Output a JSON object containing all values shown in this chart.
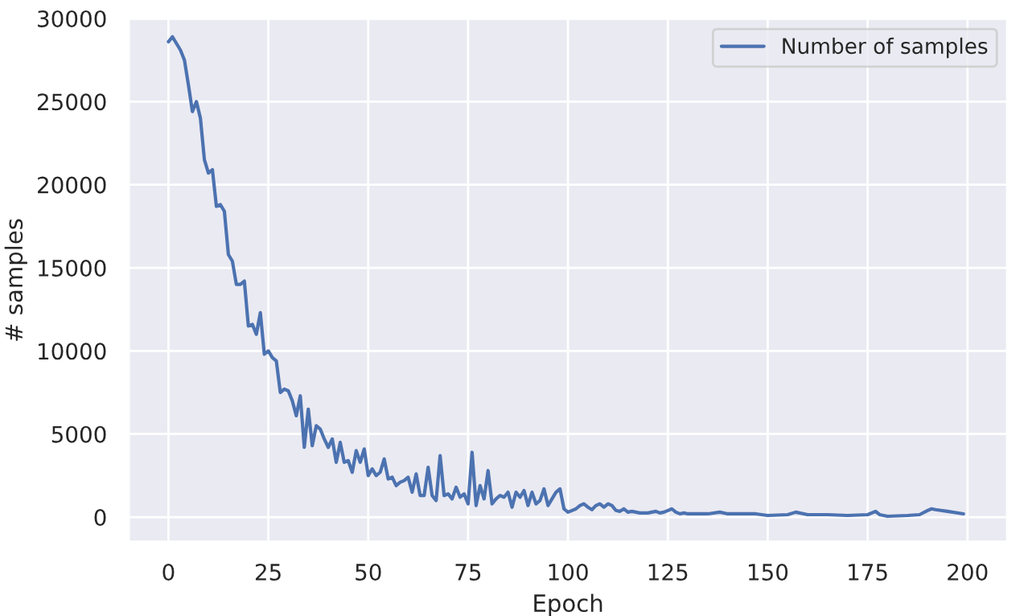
{
  "chart_data": {
    "type": "line",
    "xlabel": "Epoch",
    "ylabel": "# samples",
    "xlim": [
      -10,
      210
    ],
    "xticks": [
      0,
      25,
      50,
      75,
      100,
      125,
      150,
      175,
      200
    ],
    "ylim": [
      -1500,
      30000
    ],
    "yticks": [
      0,
      5000,
      10000,
      15000,
      20000,
      25000,
      30000
    ],
    "grid": true,
    "legend": "top right",
    "series": [
      {
        "name": "Number of samples",
        "color": "#4c72b0",
        "x": [
          0,
          1,
          2,
          3,
          4,
          5,
          6,
          7,
          8,
          9,
          10,
          11,
          12,
          13,
          14,
          15,
          16,
          17,
          18,
          19,
          20,
          21,
          22,
          23,
          24,
          25,
          26,
          27,
          28,
          29,
          30,
          31,
          32,
          33,
          34,
          35,
          36,
          37,
          38,
          39,
          40,
          41,
          42,
          43,
          44,
          45,
          46,
          47,
          48,
          49,
          50,
          51,
          52,
          53,
          54,
          55,
          56,
          57,
          58,
          59,
          60,
          61,
          62,
          63,
          64,
          65,
          66,
          67,
          68,
          69,
          70,
          71,
          72,
          73,
          74,
          75,
          76,
          77,
          78,
          79,
          80,
          81,
          82,
          83,
          84,
          85,
          86,
          87,
          88,
          89,
          90,
          91,
          92,
          93,
          94,
          95,
          96,
          97,
          98,
          99,
          100,
          101,
          102,
          103,
          104,
          105,
          106,
          107,
          108,
          109,
          110,
          111,
          112,
          113,
          114,
          115,
          116,
          117,
          118,
          119,
          120,
          121,
          122,
          123,
          124,
          125,
          126,
          127,
          128,
          129,
          130,
          135,
          138,
          140,
          145,
          147,
          150,
          155,
          157,
          160,
          165,
          170,
          175,
          177,
          178,
          180,
          185,
          188,
          190,
          191,
          192,
          195,
          199
        ],
        "values": [
          28600,
          28900,
          28500,
          28100,
          27500,
          26000,
          24400,
          25000,
          24000,
          21500,
          20700,
          20900,
          18700,
          18800,
          18400,
          15800,
          15400,
          14000,
          14000,
          14200,
          11500,
          11600,
          11000,
          12300,
          9800,
          10000,
          9600,
          9400,
          7500,
          7700,
          7600,
          7000,
          6100,
          7300,
          4200,
          6500,
          4300,
          5500,
          5300,
          4700,
          4200,
          4700,
          3300,
          4500,
          3300,
          3400,
          2700,
          4000,
          3300,
          4100,
          2500,
          2900,
          2500,
          2700,
          3500,
          2300,
          2400,
          1900,
          2100,
          2200,
          2400,
          1500,
          2600,
          1300,
          1300,
          3000,
          1300,
          1000,
          3700,
          1300,
          1400,
          1100,
          1800,
          1200,
          1400,
          800,
          3900,
          700,
          1900,
          1100,
          2800,
          800,
          1100,
          1300,
          1200,
          1500,
          600,
          1500,
          1200,
          1600,
          700,
          1500,
          800,
          1000,
          1700,
          700,
          1100,
          1500,
          1700,
          500,
          300,
          400,
          500,
          700,
          800,
          600,
          450,
          700,
          800,
          600,
          800,
          700,
          400,
          350,
          500,
          300,
          350,
          300,
          250,
          250,
          250,
          300,
          350,
          250,
          300,
          400,
          500,
          300,
          200,
          250,
          200,
          200,
          300,
          200,
          200,
          200,
          100,
          150,
          300,
          150,
          150,
          100,
          150,
          350,
          150,
          50,
          100,
          150,
          400,
          500,
          450,
          350,
          200
        ]
      }
    ]
  }
}
